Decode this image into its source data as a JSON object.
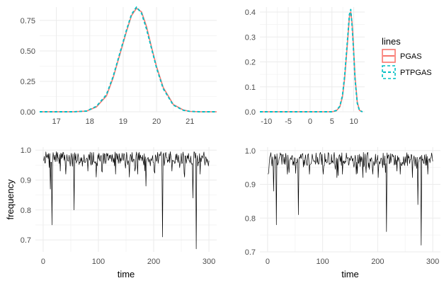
{
  "colors": {
    "pgas": "#F8766D",
    "ptpgas": "#00BFC4",
    "trace": "#000000"
  },
  "legend": {
    "title": "lines",
    "entries": [
      {
        "label": "PGAS",
        "color": "#F8766D",
        "style": "solid"
      },
      {
        "label": "PTPGAS",
        "color": "#00BFC4",
        "style": "dashed"
      }
    ]
  },
  "chart_data": [
    {
      "type": "line",
      "title": "",
      "xlabel": "",
      "ylabel": "",
      "xlim": [
        16.5,
        21.8
      ],
      "ylim": [
        0,
        0.86
      ],
      "xticks": [
        17,
        18,
        19,
        20,
        21
      ],
      "xtick_labels": [
        "17",
        "18",
        "19",
        "20",
        "21"
      ],
      "yticks": [
        0,
        0.25,
        0.5,
        0.75
      ],
      "ytick_labels": [
        "0.00",
        "0.25",
        "0.50",
        "0.75"
      ],
      "series": [
        {
          "name": "PGAS",
          "x": [
            16.5,
            17.5,
            17.9,
            18.2,
            18.5,
            18.7,
            18.9,
            19.1,
            19.25,
            19.4,
            19.55,
            19.7,
            19.85,
            20.0,
            20.2,
            20.5,
            20.8,
            21.0,
            21.3,
            21.8
          ],
          "y": [
            0,
            0,
            0.005,
            0.04,
            0.13,
            0.28,
            0.47,
            0.66,
            0.79,
            0.85,
            0.82,
            0.7,
            0.53,
            0.37,
            0.2,
            0.06,
            0.015,
            0.003,
            0,
            0
          ]
        },
        {
          "name": "PTPGAS",
          "x": [
            16.5,
            17.5,
            17.9,
            18.2,
            18.5,
            18.7,
            18.9,
            19.1,
            19.25,
            19.4,
            19.55,
            19.7,
            19.85,
            20.0,
            20.2,
            20.5,
            20.8,
            21.0,
            21.3,
            21.8
          ],
          "y": [
            0,
            0,
            0.006,
            0.045,
            0.14,
            0.29,
            0.48,
            0.67,
            0.8,
            0.86,
            0.81,
            0.68,
            0.52,
            0.36,
            0.19,
            0.055,
            0.013,
            0.003,
            0,
            0
          ]
        }
      ]
    },
    {
      "type": "line",
      "title": "",
      "xlabel": "",
      "ylabel": "",
      "xlim": [
        -11.5,
        12.5
      ],
      "ylim": [
        0,
        0.42
      ],
      "xticks": [
        -10,
        -5,
        0,
        5,
        10
      ],
      "xtick_labels": [
        "-10",
        "-5",
        "0",
        "5",
        "10"
      ],
      "yticks": [
        0,
        0.1,
        0.2,
        0.3,
        0.4
      ],
      "ytick_labels": [
        "0.0",
        "0.1",
        "0.2",
        "0.3",
        "0.4"
      ],
      "series": [
        {
          "name": "PGAS",
          "x": [
            -11.5,
            5.0,
            6.0,
            6.8,
            7.4,
            7.9,
            8.3,
            8.7,
            9.0,
            9.3,
            9.6,
            9.9,
            10.3,
            10.8,
            11.3,
            12.0
          ],
          "y": [
            0,
            0,
            0.004,
            0.02,
            0.06,
            0.13,
            0.22,
            0.31,
            0.38,
            0.4,
            0.36,
            0.27,
            0.14,
            0.04,
            0.006,
            0
          ]
        },
        {
          "name": "PTPGAS",
          "x": [
            -11.5,
            5.0,
            6.0,
            6.8,
            7.4,
            7.9,
            8.3,
            8.7,
            9.0,
            9.3,
            9.6,
            9.9,
            10.3,
            10.8,
            11.3,
            12.0
          ],
          "y": [
            0,
            0,
            0.005,
            0.022,
            0.065,
            0.14,
            0.23,
            0.32,
            0.39,
            0.41,
            0.35,
            0.26,
            0.13,
            0.035,
            0.005,
            0
          ]
        }
      ]
    },
    {
      "type": "line",
      "title": "",
      "xlabel": "time",
      "ylabel": "frequency",
      "xlim": [
        -14,
        314
      ],
      "ylim": [
        0.66,
        1.01
      ],
      "xticks": [
        0,
        100,
        200,
        300
      ],
      "xtick_labels": [
        "0",
        "100",
        "200",
        "300"
      ],
      "yticks": [
        0.7,
        0.8,
        0.9,
        1.0
      ],
      "ytick_labels": [
        "0.7",
        "0.8",
        "0.9",
        "1.0"
      ],
      "trace": {
        "length": 300,
        "baseline_low": 0.955,
        "baseline_high": 0.995,
        "seed": 7,
        "dips": [
          [
            12,
            0.87
          ],
          [
            15,
            0.75
          ],
          [
            30,
            0.93
          ],
          [
            40,
            0.92
          ],
          [
            55,
            0.8
          ],
          [
            80,
            0.93
          ],
          [
            95,
            0.91
          ],
          [
            105,
            0.93
          ],
          [
            130,
            0.92
          ],
          [
            148,
            0.94
          ],
          [
            155,
            0.91
          ],
          [
            165,
            0.93
          ],
          [
            170,
            0.92
          ],
          [
            185,
            0.88
          ],
          [
            200,
            0.93
          ],
          [
            215,
            0.71
          ],
          [
            232,
            0.93
          ],
          [
            255,
            0.91
          ],
          [
            270,
            0.84
          ],
          [
            276,
            0.67
          ],
          [
            283,
            0.92
          ],
          [
            292,
            0.95
          ]
        ]
      }
    },
    {
      "type": "line",
      "title": "",
      "xlabel": "time",
      "ylabel": "",
      "xlim": [
        -14,
        314
      ],
      "ylim": [
        0.7,
        1.01
      ],
      "xticks": [
        0,
        100,
        200,
        300
      ],
      "xtick_labels": [
        "0",
        "100",
        "200",
        "300"
      ],
      "yticks": [
        0.7,
        0.8,
        0.9,
        1.0
      ],
      "ytick_labels": [
        "0.7",
        "0.8",
        "0.9",
        "1.0"
      ],
      "trace": {
        "length": 300,
        "baseline_low": 0.955,
        "baseline_high": 0.995,
        "seed": 19,
        "dips": [
          [
            10,
            0.88
          ],
          [
            15,
            0.78
          ],
          [
            35,
            0.93
          ],
          [
            55,
            0.81
          ],
          [
            75,
            0.93
          ],
          [
            100,
            0.93
          ],
          [
            125,
            0.92
          ],
          [
            135,
            0.93
          ],
          [
            160,
            0.93
          ],
          [
            172,
            0.92
          ],
          [
            190,
            0.93
          ],
          [
            200,
            0.92
          ],
          [
            215,
            0.76
          ],
          [
            240,
            0.93
          ],
          [
            262,
            0.92
          ],
          [
            272,
            0.84
          ],
          [
            278,
            0.72
          ],
          [
            290,
            0.93
          ]
        ]
      }
    }
  ]
}
